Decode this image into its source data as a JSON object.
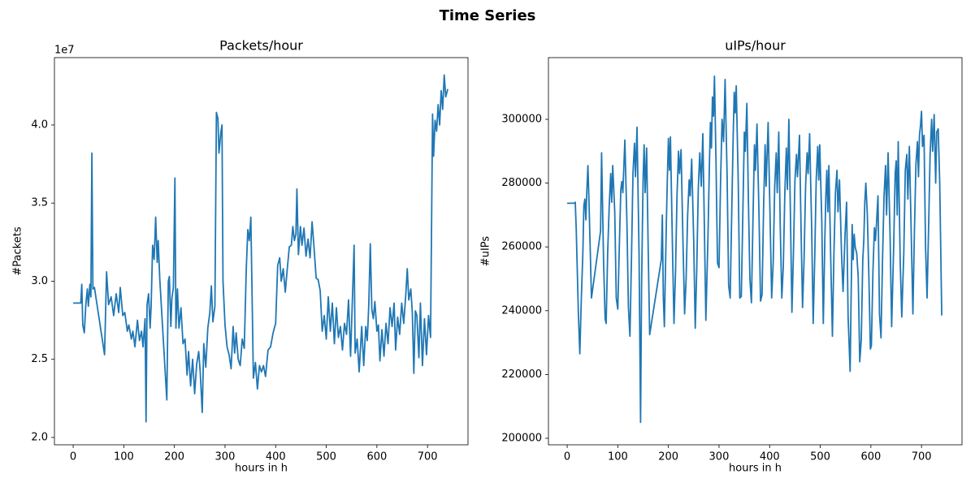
{
  "title": "Time Series",
  "chart_data": [
    {
      "type": "line",
      "title": "Packets/hour",
      "x_label": "hours in h",
      "y_label": "#Packets",
      "y_offset_label": "1e7",
      "color": "#1f77b4",
      "xlim": [
        -37,
        780
      ],
      "xticks": [
        0,
        100,
        200,
        300,
        400,
        500,
        600,
        700
      ],
      "ylim": [
        1.953,
        4.431
      ],
      "yticks": [
        {
          "value": 2,
          "label": "2.0"
        },
        {
          "value": 2.5,
          "label": "2.5"
        },
        {
          "value": 3,
          "label": "3.0"
        },
        {
          "value": 3.5,
          "label": "3.5"
        },
        {
          "value": 4,
          "label": "4.0"
        }
      ],
      "x": [
        0,
        15,
        17,
        19,
        22,
        25,
        28,
        30,
        33,
        35,
        37,
        39,
        42,
        62,
        66,
        70,
        75,
        80,
        85,
        90,
        93,
        98,
        102,
        107,
        110,
        115,
        118,
        122,
        127,
        131,
        135,
        138,
        142,
        144,
        146,
        149,
        152,
        154,
        157,
        160,
        163,
        166,
        168,
        171,
        185,
        188,
        190,
        193,
        195,
        198,
        201,
        203,
        206,
        209,
        213,
        217,
        221,
        225,
        228,
        232,
        236,
        240,
        244,
        248,
        251,
        255,
        258,
        262,
        266,
        270,
        273,
        276,
        280,
        283,
        286,
        288,
        292,
        294,
        296,
        300,
        304,
        308,
        312,
        316,
        319,
        322,
        326,
        330,
        334,
        338,
        342,
        345,
        348,
        351,
        354,
        356,
        360,
        364,
        368,
        372,
        376,
        380,
        385,
        390,
        395,
        400,
        404,
        408,
        411,
        415,
        419,
        423,
        427,
        431,
        434,
        437,
        440,
        442,
        445,
        449,
        452,
        456,
        460,
        464,
        468,
        472,
        476,
        480,
        484,
        488,
        492,
        496,
        500,
        504,
        508,
        512,
        516,
        520,
        524,
        528,
        532,
        536,
        540,
        544,
        548,
        552,
        555,
        557,
        561,
        565,
        570,
        574,
        578,
        581,
        584,
        587,
        590,
        593,
        596,
        600,
        603,
        606,
        610,
        614,
        618,
        622,
        626,
        630,
        634,
        637,
        641,
        645,
        649,
        653,
        657,
        660,
        663,
        667,
        670,
        673,
        676,
        679,
        683,
        686,
        690,
        694,
        698,
        702,
        706,
        710,
        712,
        715,
        718,
        721,
        724,
        727,
        730,
        733,
        736,
        740
      ],
      "values": [
        2.86,
        2.86,
        2.98,
        2.72,
        2.67,
        2.85,
        2.95,
        2.84,
        2.98,
        2.9,
        3.82,
        2.95,
        2.96,
        2.53,
        3.06,
        2.85,
        2.9,
        2.78,
        2.92,
        2.8,
        2.96,
        2.78,
        2.8,
        2.68,
        2.72,
        2.63,
        2.68,
        2.58,
        2.75,
        2.62,
        2.68,
        2.58,
        2.76,
        2.1,
        2.85,
        2.92,
        2.7,
        2.84,
        3.23,
        3.14,
        3.41,
        3.12,
        3.26,
        3.02,
        2.24,
        3.0,
        3.03,
        2.71,
        2.89,
        2.96,
        3.66,
        2.7,
        2.95,
        2.7,
        2.83,
        2.6,
        2.63,
        2.4,
        2.55,
        2.33,
        2.5,
        2.28,
        2.47,
        2.55,
        2.42,
        2.16,
        2.6,
        2.45,
        2.7,
        2.8,
        2.97,
        2.74,
        2.84,
        4.08,
        4.04,
        3.82,
        3.96,
        4.0,
        3.0,
        2.72,
        2.58,
        2.53,
        2.44,
        2.71,
        2.54,
        2.67,
        2.5,
        2.46,
        2.63,
        2.57,
        3.08,
        3.33,
        3.26,
        3.41,
        2.8,
        2.38,
        2.48,
        2.31,
        2.46,
        2.42,
        2.46,
        2.39,
        2.56,
        2.58,
        2.67,
        2.73,
        3.1,
        3.15,
        3.0,
        3.08,
        2.93,
        3.08,
        3.22,
        3.23,
        3.35,
        3.26,
        3.3,
        3.59,
        3.17,
        3.35,
        3.23,
        3.34,
        3.16,
        3.27,
        3.15,
        3.38,
        3.21,
        3.02,
        3.01,
        2.94,
        2.68,
        2.78,
        2.63,
        2.9,
        2.68,
        2.86,
        2.6,
        2.83,
        2.64,
        2.71,
        2.56,
        2.73,
        2.66,
        2.88,
        2.52,
        2.92,
        3.23,
        2.54,
        2.63,
        2.42,
        2.71,
        2.46,
        2.71,
        2.62,
        2.85,
        3.24,
        2.82,
        2.76,
        2.87,
        2.68,
        2.72,
        2.49,
        2.69,
        2.52,
        2.73,
        2.6,
        2.83,
        2.71,
        2.86,
        2.56,
        2.77,
        2.66,
        2.86,
        2.73,
        2.91,
        3.08,
        2.88,
        2.95,
        2.8,
        2.41,
        2.81,
        2.78,
        2.51,
        2.86,
        2.46,
        2.76,
        2.53,
        2.78,
        2.64,
        4.07,
        3.8,
        4.03,
        3.96,
        4.13,
        4.0,
        4.22,
        4.1,
        4.32,
        4.18,
        4.23
      ]
    },
    {
      "type": "line",
      "title": "uIPs/hour",
      "x_label": "hours in h",
      "y_label": "#uIPs",
      "color": "#1f77b4",
      "xlim": [
        -37,
        780
      ],
      "xticks": [
        0,
        100,
        200,
        300,
        400,
        500,
        600,
        700
      ],
      "ylim": [
        197960,
        319340
      ],
      "yticks": [
        200000,
        220000,
        240000,
        260000,
        280000,
        300000
      ],
      "x": [
        0,
        14,
        16,
        18,
        22,
        25,
        28,
        31,
        33,
        35,
        37,
        39,
        41,
        43,
        48,
        66,
        68,
        72,
        75,
        77,
        80,
        83,
        86,
        88,
        90,
        94,
        97,
        100,
        103,
        106,
        108,
        110,
        114,
        118,
        121,
        124,
        127,
        130,
        133,
        135,
        138,
        142,
        145,
        147,
        150,
        152,
        154,
        157,
        160,
        163,
        186,
        188,
        190,
        192,
        196,
        198,
        200,
        202,
        204,
        208,
        211,
        214,
        217,
        220,
        222,
        225,
        229,
        232,
        235,
        238,
        241,
        243,
        246,
        250,
        253,
        256,
        259,
        262,
        265,
        268,
        271,
        274,
        278,
        281,
        283,
        285,
        287,
        289,
        291,
        294,
        297,
        300,
        303,
        306,
        309,
        312,
        316,
        319,
        322,
        325,
        328,
        330,
        332,
        334,
        338,
        341,
        344,
        347,
        350,
        352,
        355,
        358,
        361,
        364,
        367,
        370,
        372,
        375,
        379,
        382,
        385,
        388,
        391,
        393,
        397,
        401,
        404,
        407,
        410,
        413,
        415,
        418,
        421,
        424,
        427,
        430,
        433,
        435,
        438,
        441,
        444,
        447,
        450,
        453,
        455,
        459,
        462,
        465,
        468,
        471,
        474,
        476,
        479,
        483,
        486,
        489,
        492,
        495,
        497,
        499,
        503,
        506,
        509,
        511,
        513,
        515,
        517,
        521,
        524,
        527,
        530,
        533,
        535,
        538,
        542,
        545,
        549,
        552,
        555,
        557,
        559,
        561,
        563,
        565,
        567,
        569,
        572,
        575,
        578,
        581,
        584,
        586,
        588,
        590,
        593,
        596,
        599,
        601,
        604,
        607,
        609,
        611,
        614,
        617,
        620,
        623,
        626,
        629,
        631,
        634,
        638,
        641,
        645,
        648,
        650,
        652,
        654,
        658,
        661,
        665,
        668,
        671,
        673,
        676,
        680,
        683,
        686,
        689,
        692,
        694,
        696,
        698,
        700,
        702,
        705,
        708,
        711,
        714,
        717,
        720,
        722,
        725,
        728,
        730,
        733,
        736,
        740
      ],
      "values": [
        273700,
        273700,
        274000,
        265000,
        240000,
        226500,
        244000,
        258000,
        273000,
        275000,
        268500,
        278000,
        285500,
        275000,
        244000,
        265000,
        289500,
        255000,
        237500,
        236000,
        258000,
        272500,
        283000,
        274000,
        285500,
        271000,
        244000,
        240500,
        260000,
        278000,
        280500,
        277000,
        293500,
        268000,
        241000,
        232000,
        256000,
        283000,
        292500,
        282000,
        297500,
        258000,
        205000,
        248000,
        281000,
        292000,
        277000,
        291000,
        260000,
        232500,
        256000,
        270000,
        244000,
        235000,
        268000,
        282000,
        294000,
        284000,
        294500,
        260000,
        236000,
        252000,
        276000,
        290000,
        283000,
        290500,
        260000,
        239000,
        250000,
        270000,
        281000,
        276000,
        287500,
        262000,
        234500,
        253000,
        278000,
        289500,
        279000,
        295500,
        267000,
        237000,
        262000,
        286000,
        299000,
        291000,
        307000,
        301000,
        313500,
        287000,
        255000,
        253500,
        280000,
        300000,
        293000,
        312500,
        282000,
        248000,
        244000,
        270000,
        295000,
        308500,
        302000,
        310500,
        280000,
        244000,
        244500,
        270000,
        296000,
        290000,
        305000,
        275000,
        250000,
        242500,
        268000,
        292000,
        284000,
        298500,
        270000,
        243000,
        245000,
        272000,
        292000,
        279000,
        299000,
        268000,
        244000,
        255000,
        279000,
        289500,
        277000,
        296000,
        266000,
        244000,
        254000,
        277000,
        291000,
        278000,
        300000,
        271000,
        239500,
        258000,
        281000,
        289000,
        282000,
        295000,
        266000,
        241000,
        256000,
        279000,
        289500,
        283000,
        295500,
        266000,
        236000,
        256000,
        281000,
        291500,
        281000,
        292000,
        268000,
        236000,
        262000,
        276000,
        284000,
        271000,
        285500,
        254000,
        232000,
        258000,
        277000,
        284000,
        271000,
        281000,
        258000,
        246000,
        264000,
        274000,
        238000,
        229500,
        221000,
        245000,
        267000,
        256000,
        264000,
        260000,
        258000,
        250500,
        224000,
        231000,
        256000,
        262000,
        274000,
        280000,
        270000,
        251000,
        228000,
        229000,
        252000,
        266000,
        262000,
        267000,
        276000,
        239000,
        231500,
        256000,
        276000,
        285500,
        270000,
        289500,
        263000,
        235000,
        260000,
        283000,
        287000,
        270000,
        293000,
        255000,
        238000,
        258000,
        284000,
        289000,
        275000,
        291500,
        262000,
        239000,
        265000,
        286000,
        293000,
        282000,
        295000,
        298000,
        302500,
        291500,
        295000,
        260000,
        244000,
        266000,
        289000,
        300000,
        290000,
        301500,
        280000,
        296000,
        297000,
        280000,
        238500
      ]
    }
  ]
}
